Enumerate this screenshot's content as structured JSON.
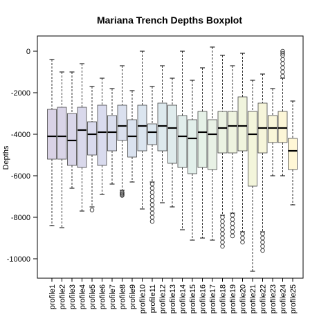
{
  "chart_data": {
    "type": "boxplot",
    "title": "Mariana Trench Depths Boxplot",
    "ylabel": "Depths",
    "xlabel": "",
    "ylim": [
      -11000,
      500
    ],
    "yticks": [
      0,
      -2000,
      -4000,
      -6000,
      -8000,
      -10000
    ],
    "ytick_labels": [
      "0",
      "-2000",
      "-4000",
      "-6000",
      "-8000",
      "-10000"
    ],
    "series": [
      {
        "name": "profile1",
        "whisker_low": -8400,
        "q1": -5200,
        "median": -4100,
        "q3": -2800,
        "whisker_high": -400,
        "outliers": []
      },
      {
        "name": "profile2",
        "whisker_low": -8500,
        "q1": -5200,
        "median": -4100,
        "q3": -2700,
        "whisker_high": -1000,
        "outliers": []
      },
      {
        "name": "profile3",
        "whisker_low": -6600,
        "q1": -5500,
        "median": -4300,
        "q3": -3000,
        "whisker_high": -1000,
        "outliers": []
      },
      {
        "name": "profile4",
        "whisker_low": -7700,
        "q1": -5600,
        "median": -3800,
        "q3": -2700,
        "whisker_high": -600,
        "outliers": []
      },
      {
        "name": "profile5",
        "whisker_low": -7500,
        "q1": -5000,
        "median": -4000,
        "q3": -3400,
        "whisker_high": -1700,
        "outliers": [
          -7650
        ]
      },
      {
        "name": "profile6",
        "whisker_low": -6900,
        "q1": -5500,
        "median": -3900,
        "q3": -2600,
        "whisker_high": -1300,
        "outliers": []
      },
      {
        "name": "profile7",
        "whisker_low": -6400,
        "q1": -4800,
        "median": -3900,
        "q3": -3100,
        "whisker_high": -1800,
        "outliers": []
      },
      {
        "name": "profile8",
        "whisker_low": -6700,
        "q1": -4300,
        "median": -3600,
        "q3": -2600,
        "whisker_high": -700,
        "outliers": [
          -6800,
          -6850,
          -6900,
          -6950
        ]
      },
      {
        "name": "profile9",
        "whisker_low": -6300,
        "q1": -5100,
        "median": -4100,
        "q3": -3300,
        "whisker_high": -1900,
        "outliers": []
      },
      {
        "name": "profile10",
        "whisker_low": -7600,
        "q1": -4800,
        "median": -3600,
        "q3": -2600,
        "whisker_high": 0,
        "outliers": []
      },
      {
        "name": "profile11",
        "whisker_low": -6300,
        "q1": -4500,
        "median": -3900,
        "q3": -3500,
        "whisker_high": -1700,
        "outliers": [
          -6400,
          -6600,
          -6800,
          -7000,
          -7200,
          -7400,
          -7600,
          -7800,
          -8000,
          -8200
        ]
      },
      {
        "name": "profile12",
        "whisker_low": -7300,
        "q1": -4800,
        "median": -3600,
        "q3": -2500,
        "whisker_high": -700,
        "outliers": []
      },
      {
        "name": "profile13",
        "whisker_low": -7500,
        "q1": -5400,
        "median": -3700,
        "q3": -2600,
        "whisker_high": -1300,
        "outliers": []
      },
      {
        "name": "profile14",
        "whisker_low": -8600,
        "q1": -5600,
        "median": -4100,
        "q3": -3100,
        "whisker_high": 0,
        "outliers": []
      },
      {
        "name": "profile15",
        "whisker_low": -9100,
        "q1": -5900,
        "median": -4200,
        "q3": -3300,
        "whisker_high": -1400,
        "outliers": []
      },
      {
        "name": "profile16",
        "whisker_low": -9000,
        "q1": -5600,
        "median": -3900,
        "q3": -2900,
        "whisker_high": -800,
        "outliers": []
      },
      {
        "name": "profile17",
        "whisker_low": -9100,
        "q1": -5700,
        "median": -4000,
        "q3": -3300,
        "whisker_high": 200,
        "outliers": []
      },
      {
        "name": "profile18",
        "whisker_low": -7900,
        "q1": -4900,
        "median": -3700,
        "q3": -2900,
        "whisker_high": -200,
        "outliers": [
          -8000,
          -8200,
          -8400,
          -8600,
          -8800,
          -9000,
          -9200,
          -9400
        ]
      },
      {
        "name": "profile19",
        "whisker_low": -7800,
        "q1": -4900,
        "median": -3600,
        "q3": -2900,
        "whisker_high": -700,
        "outliers": [
          -7900,
          -8100,
          -8300,
          -8500,
          -8700,
          -8900
        ]
      },
      {
        "name": "profile20",
        "whisker_low": -8700,
        "q1": -4800,
        "median": -3600,
        "q3": -2200,
        "whisker_high": -100,
        "outliers": [
          -8800,
          -9000,
          -9200
        ]
      },
      {
        "name": "profile21",
        "whisker_low": -10600,
        "q1": -6500,
        "median": -4000,
        "q3": -2900,
        "whisker_high": -1400,
        "outliers": []
      },
      {
        "name": "profile22",
        "whisker_low": -8700,
        "q1": -4900,
        "median": -3700,
        "q3": -2500,
        "whisker_high": -1100,
        "outliers": [
          -8800,
          -9000,
          -9200,
          -9400,
          -9600
        ]
      },
      {
        "name": "profile23",
        "whisker_low": -6000,
        "q1": -4400,
        "median": -3700,
        "q3": -3100,
        "whisker_high": -1800,
        "outliers": []
      },
      {
        "name": "profile24",
        "whisker_low": -6000,
        "q1": -4400,
        "median": -3700,
        "q3": -2900,
        "whisker_high": -1300,
        "outliers": [
          -1200,
          -1000,
          -800,
          -600,
          -400,
          -200,
          -100,
          0
        ]
      },
      {
        "name": "profile25",
        "whisker_low": -7400,
        "q1": -5700,
        "median": -4800,
        "q3": -4200,
        "whisker_high": -2400,
        "outliers": []
      }
    ],
    "colors": [
      "#d9d2e5",
      "#d9dbee",
      "#dbe6ef",
      "#e3f0e9",
      "#f1f4dc",
      "#fff7d6"
    ]
  }
}
